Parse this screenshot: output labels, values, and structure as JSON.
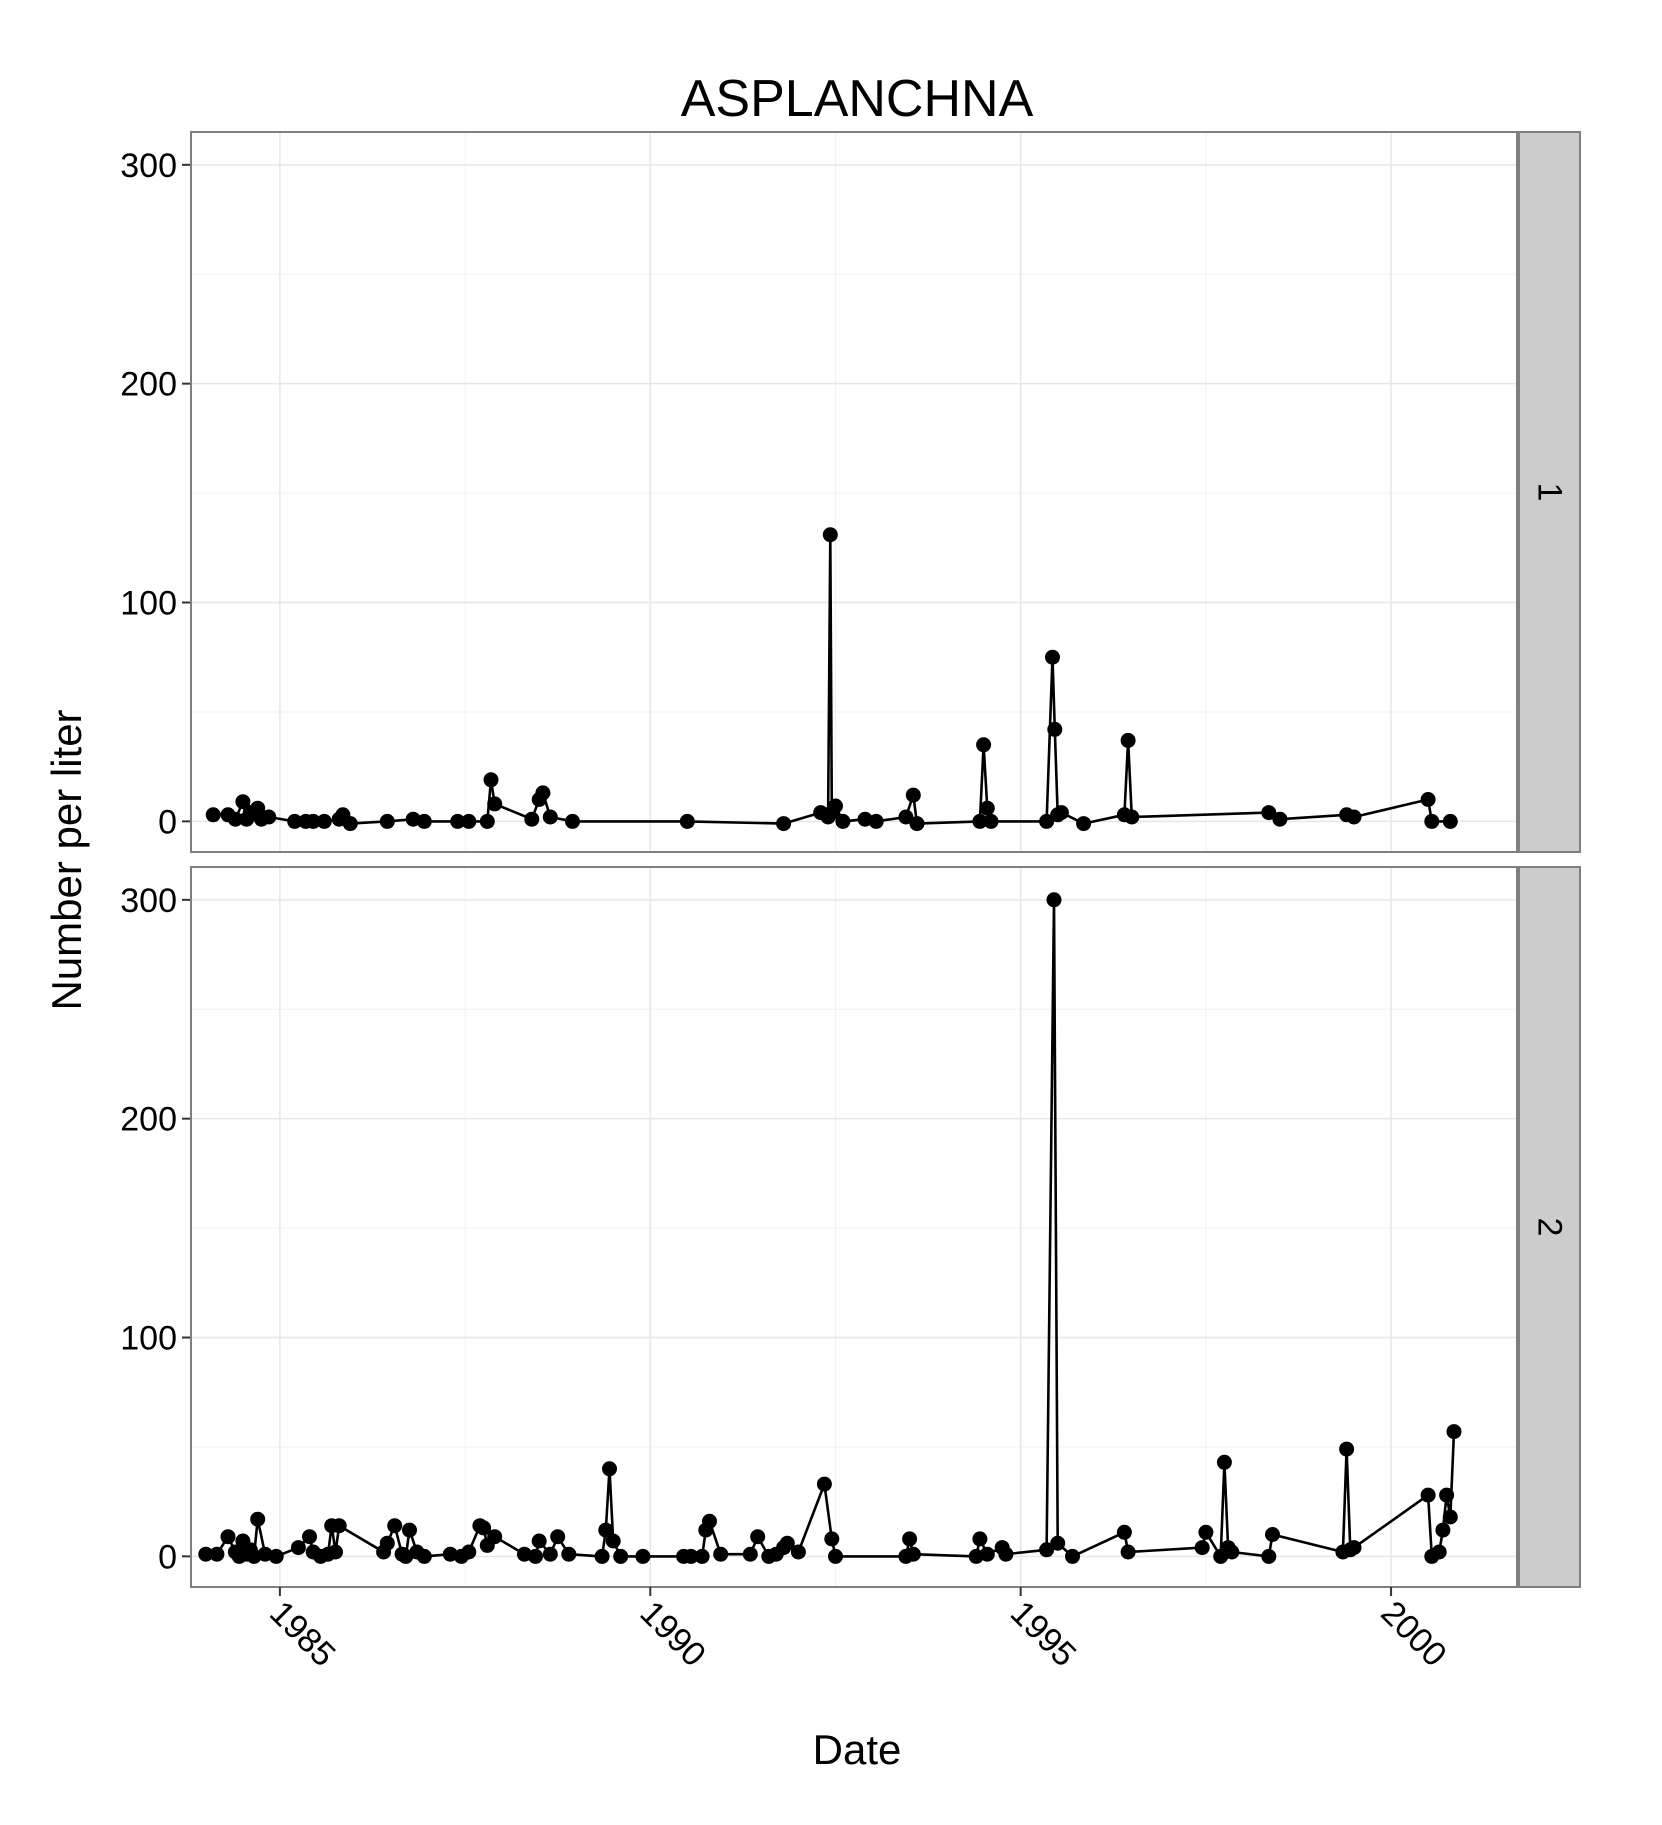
{
  "chart_data": {
    "type": "line",
    "title": "ASPLANCHNA",
    "xlabel": "Date",
    "ylabel": "Number per liter",
    "x_ticks": [
      "1985",
      "1990",
      "1995",
      "2000"
    ],
    "x_tick_values": [
      1985,
      1990,
      1995,
      2000
    ],
    "xlim": [
      1983.8,
      2001.7
    ],
    "y_ticks": [
      "0",
      "100",
      "200",
      "300"
    ],
    "y_tick_values": [
      0,
      100,
      200,
      300
    ],
    "ylim": [
      -14,
      315
    ],
    "grid": true,
    "panels": [
      {
        "strip_label": "1",
        "x": [
          1984.1,
          1984.3,
          1984.4,
          1984.5,
          1984.55,
          1984.6,
          1984.7,
          1984.75,
          1984.85,
          1985.2,
          1985.35,
          1985.45,
          1985.6,
          1985.8,
          1985.85,
          1985.95,
          1986.45,
          1986.8,
          1986.95,
          1987.4,
          1987.55,
          1987.8,
          1987.85,
          1987.9,
          1988.4,
          1988.5,
          1988.55,
          1988.65,
          1988.95,
          1990.5,
          1991.8,
          1992.3,
          1992.4,
          1992.43,
          1992.45,
          1992.5,
          1992.6,
          1992.9,
          1993.05,
          1993.45,
          1993.55,
          1993.6,
          1994.45,
          1994.5,
          1994.55,
          1994.6,
          1995.35,
          1995.43,
          1995.46,
          1995.5,
          1995.55,
          1995.85,
          1996.4,
          1996.45,
          1996.5,
          1998.35,
          1998.5,
          1999.4,
          1999.5,
          2000.5,
          2000.55,
          2000.8
        ],
        "y": [
          3,
          3,
          1,
          9,
          1,
          4,
          6,
          1,
          2,
          0,
          0,
          0,
          0,
          1,
          3,
          -1,
          0,
          1,
          0,
          0,
          0,
          0,
          19,
          8,
          1,
          10,
          13,
          2,
          0,
          0,
          -1,
          4,
          2,
          131,
          4,
          7,
          0,
          1,
          0,
          2,
          12,
          -1,
          0,
          35,
          6,
          0,
          0,
          75,
          42,
          3,
          4,
          -1,
          3,
          37,
          2,
          4,
          1,
          3,
          2,
          10,
          0,
          0
        ]
      },
      {
        "strip_label": "2",
        "x": [
          1984.0,
          1984.15,
          1984.3,
          1984.4,
          1984.45,
          1984.5,
          1984.55,
          1984.6,
          1984.65,
          1984.7,
          1984.8,
          1984.95,
          1985.25,
          1985.4,
          1985.45,
          1985.55,
          1985.65,
          1985.7,
          1985.75,
          1985.8,
          1986.4,
          1986.45,
          1986.55,
          1986.65,
          1986.7,
          1986.75,
          1986.85,
          1986.95,
          1987.3,
          1987.45,
          1987.55,
          1987.7,
          1987.75,
          1987.8,
          1987.9,
          1988.3,
          1988.45,
          1988.5,
          1988.65,
          1988.75,
          1988.9,
          1989.35,
          1989.4,
          1989.45,
          1989.5,
          1989.6,
          1989.9,
          1990.45,
          1990.55,
          1990.7,
          1990.75,
          1990.8,
          1990.95,
          1991.35,
          1991.45,
          1991.6,
          1991.7,
          1991.8,
          1991.85,
          1992.0,
          1992.35,
          1992.45,
          1992.5,
          1993.45,
          1993.5,
          1993.55,
          1994.4,
          1994.45,
          1994.55,
          1994.75,
          1994.8,
          1995.35,
          1995.45,
          1995.5,
          1995.7,
          1996.4,
          1996.45,
          1997.45,
          1997.5,
          1997.7,
          1997.75,
          1997.8,
          1997.85,
          1998.35,
          1998.4,
          1999.35,
          1999.4,
          1999.45,
          1999.5,
          2000.5,
          2000.55,
          2000.65,
          2000.7,
          2000.75,
          2000.8,
          2000.85
        ],
        "y": [
          1,
          1,
          9,
          2,
          0,
          7,
          1,
          3,
          0,
          17,
          1,
          0,
          4,
          9,
          2,
          0,
          1,
          14,
          2,
          14,
          2,
          6,
          14,
          1,
          0,
          12,
          2,
          0,
          1,
          0,
          2,
          14,
          13,
          5,
          9,
          1,
          0,
          7,
          1,
          9,
          1,
          0,
          12,
          40,
          7,
          0,
          0,
          0,
          0,
          0,
          12,
          16,
          1,
          1,
          9,
          0,
          1,
          4,
          6,
          2,
          33,
          8,
          0,
          0,
          8,
          1,
          0,
          8,
          1,
          4,
          1,
          3,
          300,
          6,
          0,
          11,
          2,
          4,
          11,
          0,
          43,
          4,
          2,
          0,
          10,
          2,
          49,
          3,
          4,
          28,
          0,
          2,
          12,
          28,
          18,
          57
        ]
      }
    ]
  }
}
